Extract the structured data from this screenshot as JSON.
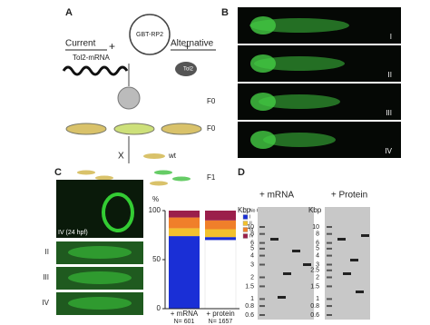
{
  "panels": {
    "A": {
      "label": "A",
      "current": "Current",
      "alternative": "Alternative",
      "mrna": "Tol2-mRNA",
      "plasmid": "GBT-RP2",
      "protein": "Tol2",
      "plus": "+",
      "generations": [
        "F0",
        "F0",
        "F1"
      ],
      "cross": "X",
      "wildtype": "wt"
    },
    "B": {
      "label": "B",
      "stages": [
        "I",
        "II",
        "III",
        "IV"
      ]
    },
    "C": {
      "label": "C",
      "image_caption": "IV (24 hpf)",
      "strips": [
        "II",
        "III",
        "IV"
      ]
    },
    "D": {
      "label": "D",
      "gels": [
        {
          "title": "+ mRNA",
          "unit": "Kbp",
          "ladder": [
            10,
            8,
            6,
            5,
            4,
            3,
            2,
            1.5,
            1,
            0.8,
            0.6
          ]
        },
        {
          "title": "+ Protein",
          "unit": "Kbp",
          "ladder": [
            10,
            8,
            6,
            5,
            4,
            3,
            2.5,
            2,
            1.5,
            1,
            0.8,
            0.6
          ]
        }
      ]
    }
  },
  "chart_data": {
    "type": "bar",
    "ylabel": "%",
    "ylim": [
      0,
      100
    ],
    "yticks": [
      0,
      50,
      100
    ],
    "categories": [
      "+ mRNA",
      "+ protein"
    ],
    "counts": [
      "N= 601",
      "N= 1657"
    ],
    "series": [
      {
        "name": "No GFP",
        "color": "#ffffff",
        "values": [
          0,
          70
        ]
      },
      {
        "name": "I",
        "color": "#1a2fd6",
        "values": [
          74,
          3
        ]
      },
      {
        "name": "II",
        "color": "#f2c12e",
        "values": [
          8,
          8
        ]
      },
      {
        "name": "III",
        "color": "#f07f2a",
        "values": [
          11,
          9
        ]
      },
      {
        "name": "IV",
        "color": "#9b1f4b",
        "values": [
          7,
          10
        ]
      }
    ]
  }
}
